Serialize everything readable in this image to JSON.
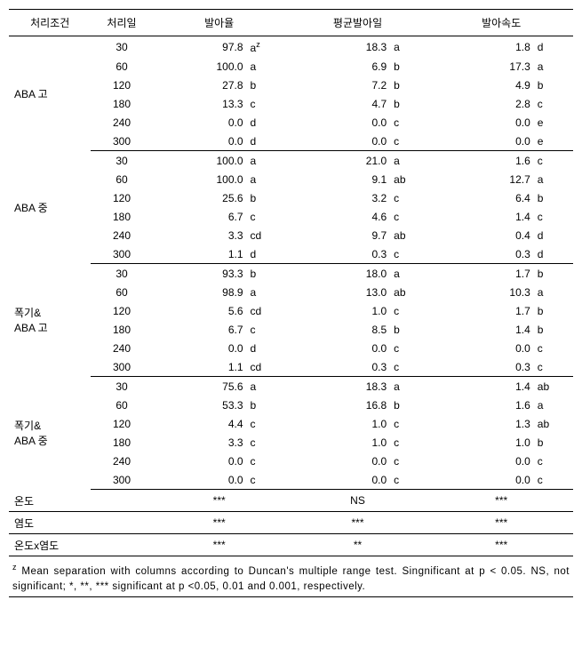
{
  "headers": {
    "cond": "처리조건",
    "day": "처리일",
    "rate": "발아율",
    "avgday": "평균발아일",
    "speed": "발아속도"
  },
  "firstRowSuffix": "a",
  "groups": [
    {
      "label": "ABA 고",
      "rows": [
        {
          "day": "30",
          "rate": "97.8",
          "rs": "",
          "avg": "18.3",
          "as": "a",
          "spd": "1.8",
          "ss": "d"
        },
        {
          "day": "60",
          "rate": "100.0",
          "rs": "a",
          "avg": "6.9",
          "as": "b",
          "spd": "17.3",
          "ss": "a"
        },
        {
          "day": "120",
          "rate": "27.8",
          "rs": "b",
          "avg": "7.2",
          "as": "b",
          "spd": "4.9",
          "ss": "b"
        },
        {
          "day": "180",
          "rate": "13.3",
          "rs": "c",
          "avg": "4.7",
          "as": "b",
          "spd": "2.8",
          "ss": "c"
        },
        {
          "day": "240",
          "rate": "0.0",
          "rs": "d",
          "avg": "0.0",
          "as": "c",
          "spd": "0.0",
          "ss": "e"
        },
        {
          "day": "300",
          "rate": "0.0",
          "rs": "d",
          "avg": "0.0",
          "as": "c",
          "spd": "0.0",
          "ss": "e"
        }
      ]
    },
    {
      "label": "ABA 중",
      "rows": [
        {
          "day": "30",
          "rate": "100.0",
          "rs": "a",
          "avg": "21.0",
          "as": "a",
          "spd": "1.6",
          "ss": "c"
        },
        {
          "day": "60",
          "rate": "100.0",
          "rs": "a",
          "avg": "9.1",
          "as": "ab",
          "spd": "12.7",
          "ss": "a"
        },
        {
          "day": "120",
          "rate": "25.6",
          "rs": "b",
          "avg": "3.2",
          "as": "c",
          "spd": "6.4",
          "ss": "b"
        },
        {
          "day": "180",
          "rate": "6.7",
          "rs": "c",
          "avg": "4.6",
          "as": "c",
          "spd": "1.4",
          "ss": "c"
        },
        {
          "day": "240",
          "rate": "3.3",
          "rs": "cd",
          "avg": "9.7",
          "as": "ab",
          "spd": "0.4",
          "ss": "d"
        },
        {
          "day": "300",
          "rate": "1.1",
          "rs": "d",
          "avg": "0.3",
          "as": "c",
          "spd": "0.3",
          "ss": "d"
        }
      ]
    },
    {
      "label": "폭기&\nABA 고",
      "rows": [
        {
          "day": "30",
          "rate": "93.3",
          "rs": "b",
          "avg": "18.0",
          "as": "a",
          "spd": "1.7",
          "ss": "b"
        },
        {
          "day": "60",
          "rate": "98.9",
          "rs": "a",
          "avg": "13.0",
          "as": "ab",
          "spd": "10.3",
          "ss": "a"
        },
        {
          "day": "120",
          "rate": "5.6",
          "rs": "cd",
          "avg": "1.0",
          "as": "c",
          "spd": "1.7",
          "ss": "b"
        },
        {
          "day": "180",
          "rate": "6.7",
          "rs": "c",
          "avg": "8.5",
          "as": "b",
          "spd": "1.4",
          "ss": "b"
        },
        {
          "day": "240",
          "rate": "0.0",
          "rs": "d",
          "avg": "0.0",
          "as": "c",
          "spd": "0.0",
          "ss": "c"
        },
        {
          "day": "300",
          "rate": "1.1",
          "rs": "cd",
          "avg": "0.3",
          "as": "c",
          "spd": "0.3",
          "ss": "c"
        }
      ]
    },
    {
      "label": "폭기&\nABA 중",
      "rows": [
        {
          "day": "30",
          "rate": "75.6",
          "rs": "a",
          "avg": "18.3",
          "as": "a",
          "spd": "1.4",
          "ss": "ab"
        },
        {
          "day": "60",
          "rate": "53.3",
          "rs": "b",
          "avg": "16.8",
          "as": "b",
          "spd": "1.6",
          "ss": "a"
        },
        {
          "day": "120",
          "rate": "4.4",
          "rs": "c",
          "avg": "1.0",
          "as": "c",
          "spd": "1.3",
          "ss": "ab"
        },
        {
          "day": "180",
          "rate": "3.3",
          "rs": "c",
          "avg": "1.0",
          "as": "c",
          "spd": "1.0",
          "ss": "b"
        },
        {
          "day": "240",
          "rate": "0.0",
          "rs": "c",
          "avg": "0.0",
          "as": "c",
          "spd": "0.0",
          "ss": "c"
        },
        {
          "day": "300",
          "rate": "0.0",
          "rs": "c",
          "avg": "0.0",
          "as": "c",
          "spd": "0.0",
          "ss": "c"
        }
      ]
    }
  ],
  "sig": [
    {
      "label": "온도",
      "rate": "***",
      "avg": "NS",
      "spd": "***"
    },
    {
      "label": "염도",
      "rate": "***",
      "avg": "***",
      "spd": "***"
    },
    {
      "label": "온도x염도",
      "rate": "***",
      "avg": "**",
      "spd": "***"
    }
  ],
  "footnote": "Mean separation with columns according to Duncan's multiple range test. Singnificant at p < 0.05. NS, not significant; *, **, *** significant at p <0.05, 0.01 and 0.001, respectively.",
  "footnotePrefix": "z",
  "colors": {
    "text": "#000000",
    "border": "#000000",
    "background": "#ffffff"
  },
  "fontsize": {
    "body": 12,
    "footnote": 11.5
  }
}
